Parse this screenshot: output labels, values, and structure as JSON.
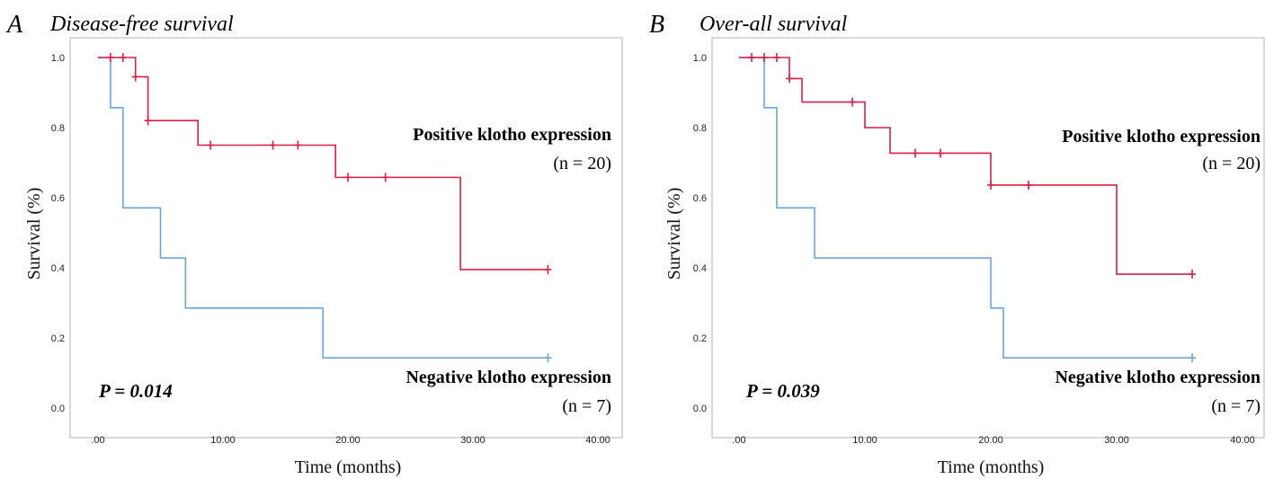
{
  "chart_data": [
    {
      "type": "line",
      "subtype": "kaplan-meier",
      "panel_label": "A",
      "title": "Disease-free survival",
      "xlabel": "Time (months)",
      "ylabel": "Survival (%)",
      "xlim": [
        0,
        40
      ],
      "ylim": [
        0,
        1.0
      ],
      "x_ticks": [
        ".00",
        "10.00",
        "20.00",
        "30.00",
        "40.00"
      ],
      "y_ticks": [
        "0.0",
        "0.2",
        "0.4",
        "0.6",
        "0.8",
        "1.0"
      ],
      "p_value": "P = 0.014",
      "series": [
        {
          "name": "Positive klotho expression",
          "n_label": "(n = 20)",
          "color": "#d81e4a",
          "steps": [
            [
              0,
              1.0
            ],
            [
              3,
              0.945
            ],
            [
              4,
              0.82
            ],
            [
              8,
              0.75
            ],
            [
              19,
              0.658
            ],
            [
              29,
              0.395
            ],
            [
              36,
              0.395
            ]
          ],
          "censors": [
            [
              1,
              1.0
            ],
            [
              2,
              1.0
            ],
            [
              3,
              0.945
            ],
            [
              4,
              0.82
            ],
            [
              9,
              0.75
            ],
            [
              14,
              0.75
            ],
            [
              16,
              0.75
            ],
            [
              20,
              0.658
            ],
            [
              23,
              0.658
            ],
            [
              36,
              0.395
            ]
          ]
        },
        {
          "name": "Negative klotho expression",
          "n_label": "(n = 7)",
          "color": "#6aa5d9",
          "steps": [
            [
              0,
              1.0
            ],
            [
              1,
              0.857
            ],
            [
              2,
              0.571
            ],
            [
              5,
              0.428
            ],
            [
              7,
              0.285
            ],
            [
              18,
              0.143
            ],
            [
              36,
              0.143
            ]
          ],
          "censors": [
            [
              36,
              0.143
            ]
          ]
        }
      ]
    },
    {
      "type": "line",
      "subtype": "kaplan-meier",
      "panel_label": "B",
      "title": "Over-all survival",
      "xlabel": "Time (months)",
      "ylabel": "Survival (%)",
      "xlim": [
        0,
        40
      ],
      "ylim": [
        0,
        1.0
      ],
      "x_ticks": [
        ".00",
        "10.00",
        "20.00",
        "30.00",
        "40.00"
      ],
      "y_ticks": [
        "0.0",
        "0.2",
        "0.4",
        "0.6",
        "0.8",
        "1.0"
      ],
      "p_value": "P = 0.039",
      "series": [
        {
          "name": "Positive klotho expression",
          "n_label": "(n = 20)",
          "color": "#d81e4a",
          "steps": [
            [
              0,
              1.0
            ],
            [
              4,
              0.94
            ],
            [
              5,
              0.873
            ],
            [
              10,
              0.8
            ],
            [
              12,
              0.727
            ],
            [
              20,
              0.636
            ],
            [
              30,
              0.382
            ],
            [
              36,
              0.382
            ]
          ],
          "censors": [
            [
              1,
              1.0
            ],
            [
              2,
              1.0
            ],
            [
              3,
              1.0
            ],
            [
              4,
              0.94
            ],
            [
              9,
              0.873
            ],
            [
              14,
              0.727
            ],
            [
              16,
              0.727
            ],
            [
              20,
              0.636
            ],
            [
              23,
              0.636
            ],
            [
              36,
              0.382
            ]
          ]
        },
        {
          "name": "Negative klotho expression",
          "n_label": "(n = 7)",
          "color": "#6aa5d9",
          "steps": [
            [
              0,
              1.0
            ],
            [
              2,
              0.857
            ],
            [
              3,
              0.571
            ],
            [
              6,
              0.428
            ],
            [
              20,
              0.285
            ],
            [
              21,
              0.143
            ],
            [
              36,
              0.143
            ]
          ],
          "censors": [
            [
              36,
              0.143
            ]
          ]
        }
      ]
    }
  ]
}
